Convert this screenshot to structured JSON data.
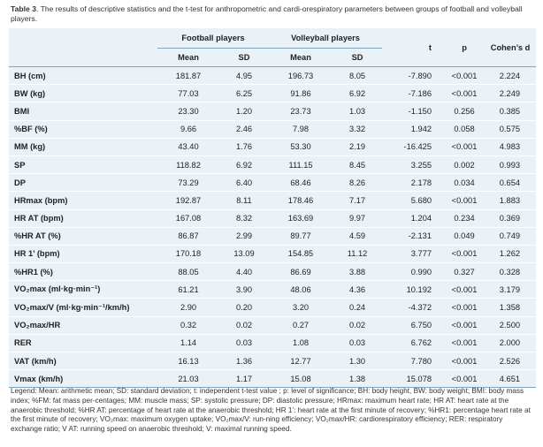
{
  "caption": {
    "label": "Table 3",
    "text": ". The results of descriptive statistics and the t-test for anthropometric and cardi-orespiratory parameters between groups of football and volleyball players."
  },
  "header": {
    "group1": "Football players",
    "group2": "Volleyball players",
    "t": "t",
    "p": "p",
    "d": "Cohen’s d",
    "mean": "Mean",
    "sd": "SD"
  },
  "rows": [
    {
      "label": "BH (cm)",
      "fm": "181.87",
      "fsd": "4.95",
      "vm": "196.73",
      "vsd": "8.05",
      "t": "-7.890",
      "p": "<0.001",
      "d": "2.224"
    },
    {
      "label": "BW (kg)",
      "fm": "77.03",
      "fsd": "6.25",
      "vm": "91.86",
      "vsd": "6.92",
      "t": "-7.186",
      "p": "<0.001",
      "d": "2.249"
    },
    {
      "label": "BMI",
      "fm": "23.30",
      "fsd": "1.20",
      "vm": "23.73",
      "vsd": "1.03",
      "t": "-1.150",
      "p": "0.256",
      "d": "0.385"
    },
    {
      "label": "%BF (%)",
      "fm": "9.66",
      "fsd": "2.46",
      "vm": "7.98",
      "vsd": "3.32",
      "t": "1.942",
      "p": "0.058",
      "d": "0.575"
    },
    {
      "label": "MM (kg)",
      "fm": "43.40",
      "fsd": "1.76",
      "vm": "53.30",
      "vsd": "2.19",
      "t": "-16.425",
      "p": "<0.001",
      "d": "4.983"
    },
    {
      "label": "SP",
      "fm": "118.82",
      "fsd": "6.92",
      "vm": "111.15",
      "vsd": "8.45",
      "t": "3.255",
      "p": "0.002",
      "d": "0.993"
    },
    {
      "label": "DP",
      "fm": "73.29",
      "fsd": "6.40",
      "vm": "68.46",
      "vsd": "8.26",
      "t": "2.178",
      "p": "0.034",
      "d": "0.654"
    },
    {
      "label": "HRmax (bpm)",
      "fm": "192.87",
      "fsd": "8.11",
      "vm": "178.46",
      "vsd": "7.17",
      "t": "5.680",
      "p": "<0.001",
      "d": "1.883"
    },
    {
      "label": "HR AT (bpm)",
      "fm": "167.08",
      "fsd": "8.32",
      "vm": "163.69",
      "vsd": "9.97",
      "t": "1.204",
      "p": "0.234",
      "d": "0.369"
    },
    {
      "label": "%HR AT (%)",
      "fm": "86.87",
      "fsd": "2.99",
      "vm": "89.77",
      "vsd": "4.59",
      "t": "-2.131",
      "p": "0.049",
      "d": "0.749"
    },
    {
      "label": "HR 1’ (bpm)",
      "fm": "170.18",
      "fsd": "13.09",
      "vm": "154.85",
      "vsd": "11.12",
      "t": "3.777",
      "p": "<0.001",
      "d": "1.262"
    },
    {
      "label": "%HR1 (%)",
      "fm": "88.05",
      "fsd": "4.40",
      "vm": "86.69",
      "vsd": "3.88",
      "t": "0.990",
      "p": "0.327",
      "d": "0.328"
    },
    {
      "label": "VO₂max (ml·kg·min⁻¹)",
      "fm": "61.21",
      "fsd": "3.90",
      "vm": "48.06",
      "vsd": "4.36",
      "t": "10.192",
      "p": "<0.001",
      "d": "3.179"
    },
    {
      "label": "VO₂max/V (ml·kg·min⁻¹/km/h)",
      "fm": "2.90",
      "fsd": "0.20",
      "vm": "3.20",
      "vsd": "0.24",
      "t": "-4.372",
      "p": "<0.001",
      "d": "1.358"
    },
    {
      "label": "VO₂max/HR",
      "fm": "0.32",
      "fsd": "0.02",
      "vm": "0.27",
      "vsd": "0.02",
      "t": "6.750",
      "p": "<0.001",
      "d": "2.500"
    },
    {
      "label": "RER",
      "fm": "1.14",
      "fsd": "0.03",
      "vm": "1.08",
      "vsd": "0.03",
      "t": "6.762",
      "p": "<0.001",
      "d": "2.000"
    },
    {
      "label": "VAT (km/h)",
      "fm": "16.13",
      "fsd": "1.36",
      "vm": "12.77",
      "vsd": "1.30",
      "t": "7.780",
      "p": "<0.001",
      "d": "2.526"
    },
    {
      "label": "Vmax (km/h)",
      "fm": "21.03",
      "fsd": "1.17",
      "vm": "15.08",
      "vsd": "1.38",
      "t": "15.078",
      "p": "<0.001",
      "d": "4.651"
    }
  ],
  "legend": "Legend: Mean: arithmetic mean; SD: standard deviation; t: independent t-test value ; p: level of significance; BH: body height, BW: body weight; BMI: body mass index; %FM: fat mass per-centages; MM: muscle mass; SP: systolic pressure; DP: diastolic pressure; HRmax: maximum heart rate; HR AT: heart rate at the anaerobic threshold; %HR AT: percentage of heart rate at the anaerobic threshold; HR 1’: heart rate at the first minute of recovery; %HR1: percentage heart rate at the first minute of recovery; VO₂max: maximum oxygen uptake; VO₂max/V: run-ning efficiency; VO₂max/HR: cardiorespiratory efficiency; RER: respiratory exchange ratio; V AT: running speed on anaerobic threshold; V: maximal running speed."
}
